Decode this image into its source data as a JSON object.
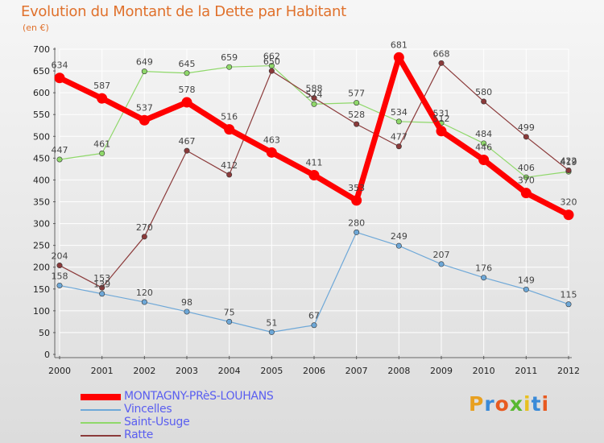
{
  "chart_data": {
    "type": "line",
    "title": "Evolution du Montant de la Dette par Habitant",
    "subtitle": "(en €)",
    "x": [
      "2000",
      "2001",
      "2002",
      "2003",
      "2004",
      "2005",
      "2006",
      "2007",
      "2008",
      "2009",
      "2010",
      "2011",
      "2012"
    ],
    "ylim": [
      0,
      700
    ],
    "yticks": [
      0,
      50,
      100,
      150,
      200,
      250,
      300,
      350,
      400,
      450,
      500,
      550,
      600,
      650,
      700
    ],
    "grid": true,
    "legend": "bottom-left",
    "series": [
      {
        "name": "MONTAGNY-PRèS-LOUHANS",
        "color": "#ff0000",
        "values": [
          634,
          587,
          537,
          578,
          516,
          463,
          411,
          353,
          681,
          512,
          446,
          370,
          320
        ]
      },
      {
        "name": "Vincelles",
        "color": "#6ea8d8",
        "values": [
          158,
          139,
          120,
          98,
          75,
          51,
          67,
          280,
          249,
          207,
          176,
          149,
          115
        ]
      },
      {
        "name": "Saint-Usuge",
        "color": "#8fd86a",
        "values": [
          447,
          461,
          649,
          645,
          659,
          662,
          574,
          577,
          534,
          531,
          484,
          406,
          419
        ]
      },
      {
        "name": "Ratte",
        "color": "#8b3a3a",
        "values": [
          204,
          153,
          270,
          467,
          412,
          650,
          588,
          528,
          477,
          668,
          580,
          499,
          422
        ]
      }
    ]
  },
  "logo": {
    "text": "Proxiti",
    "letter_colors": [
      "#e8a020",
      "#3a8ad8",
      "#e85a20",
      "#58b830",
      "#e8c020",
      "#3a8ad8",
      "#e85a20"
    ]
  }
}
